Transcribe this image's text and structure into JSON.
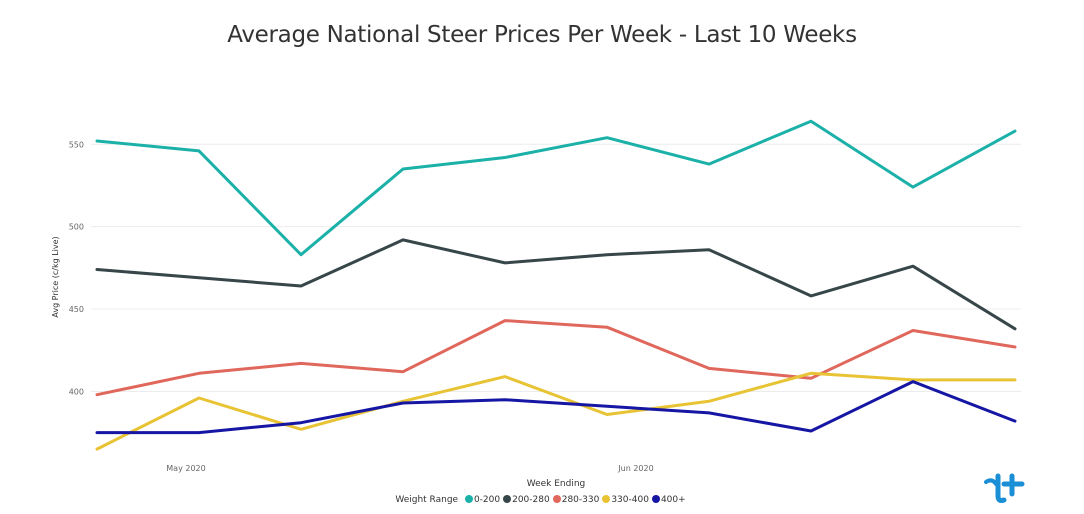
{
  "chart_data": {
    "type": "line",
    "title": "Average National Steer Prices Per Week - Last 10 Weeks",
    "xlabel": "Week Ending",
    "ylabel": "Avg Price (c/kg Live)",
    "x_tick_labels": [
      "May 2020",
      "Jun 2020"
    ],
    "y_ticks": [
      400,
      450,
      500,
      550
    ],
    "ylim": [
      363,
      583
    ],
    "grid": true,
    "legend_title": "Weight Range",
    "legend_position": "bottom",
    "series": [
      {
        "name": "0-200",
        "color": "#1bb1a8",
        "values": [
          552,
          546,
          483,
          535,
          542,
          554,
          538,
          564,
          524,
          558
        ]
      },
      {
        "name": "200-280",
        "color": "#374649",
        "values": [
          474,
          469,
          464,
          492,
          478,
          483,
          486,
          458,
          476,
          438
        ]
      },
      {
        "name": "280-330",
        "color": "#e0675b",
        "values": [
          398,
          411,
          417,
          412,
          443,
          439,
          414,
          408,
          437,
          427
        ]
      },
      {
        "name": "330-400",
        "color": "#e8c334",
        "values": [
          365,
          396,
          377,
          394,
          409,
          386,
          394,
          411,
          407,
          407
        ]
      },
      {
        "name": "400+",
        "color": "#1616a4",
        "values": [
          375,
          375,
          381,
          393,
          395,
          391,
          387,
          376,
          406,
          382
        ]
      }
    ]
  },
  "logo": {
    "name": "logo-mark"
  }
}
